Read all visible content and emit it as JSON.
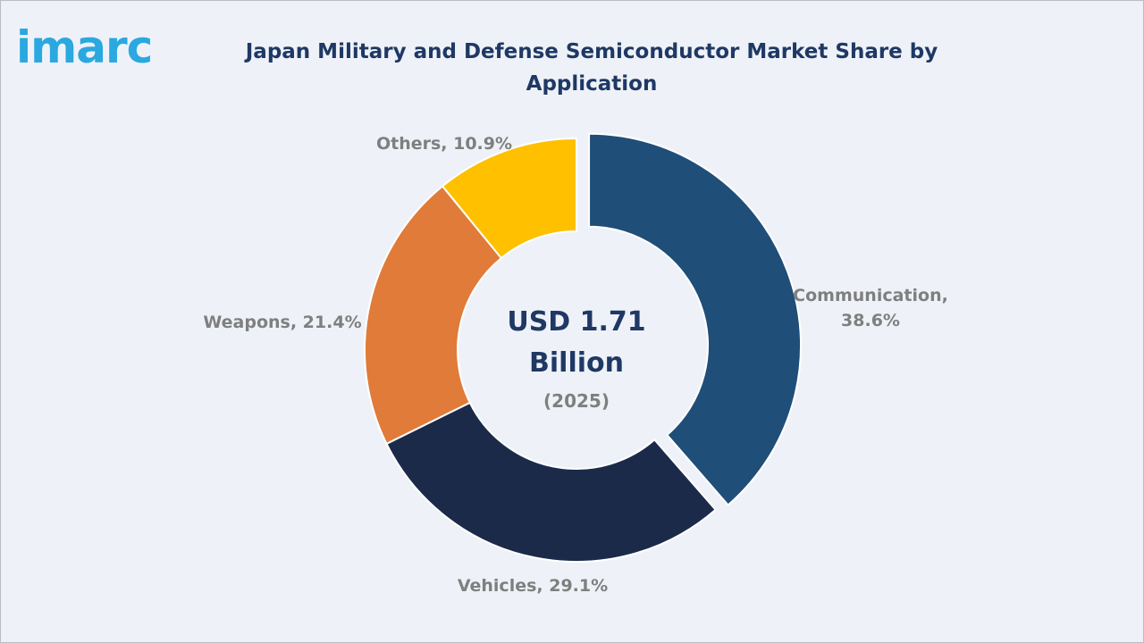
{
  "logo": {
    "text": "imarc",
    "color": "#2aa8e0"
  },
  "title": "Japan Military and Defense Semiconductor Market Share by Application",
  "center": {
    "line1": "USD 1.71",
    "line2": "Billion",
    "year": "(2025)"
  },
  "chart_data": {
    "type": "pie",
    "style": "donut",
    "title": "Japan Military and Defense Semiconductor Market Share by Application",
    "unit": "%",
    "categories": [
      "Communication",
      "Vehicles",
      "Weapons",
      "Others"
    ],
    "values": [
      38.6,
      29.1,
      21.4,
      10.9
    ],
    "labels": [
      [
        "Communication,",
        "38.6%"
      ],
      [
        "Vehicles, 29.1%"
      ],
      [
        "Weapons, 21.4%"
      ],
      [
        "Others, 10.9%"
      ]
    ],
    "colors": [
      "#1f4e79",
      "#1c2a4a",
      "#e07b39",
      "#ffc000"
    ],
    "exploded": "Communication"
  }
}
